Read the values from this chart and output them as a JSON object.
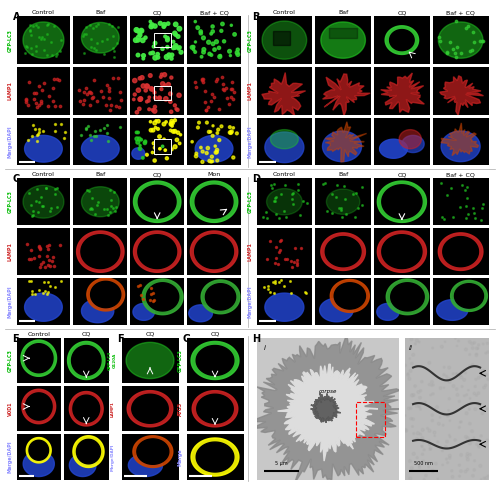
{
  "figure_bg": "#f0f0f0",
  "panel_bg": "#000000",
  "border_color": "#cccccc",
  "text_color": "#000000",
  "label_color_green": "#00ff00",
  "label_color_red": "#ff4444",
  "label_color_blue": "#4444ff",
  "panel_labels": [
    "A",
    "B",
    "C",
    "D",
    "E",
    "F",
    "G",
    "H"
  ],
  "panel_A_cols": [
    "Control",
    "Baf",
    "CQ",
    "Baf + CQ"
  ],
  "panel_A_rows": [
    "GFP-LC3",
    "LAMP1",
    "Merge/DAPI"
  ],
  "panel_B_cols": [
    "Control",
    "Baf",
    "CQ",
    "Baf + CQ"
  ],
  "panel_B_rows": [
    "GFP-LC3",
    "LAMP1",
    "Merge/DAPI"
  ],
  "panel_C_cols": [
    "Control",
    "Baf",
    "CQ",
    "Mon"
  ],
  "panel_C_rows": [
    "GFP-LC3",
    "LAMP1",
    "Merge/DAPI"
  ],
  "panel_D_cols": [
    "Control",
    "Baf",
    "CQ",
    "Baf + CQ"
  ],
  "panel_D_rows": [
    "GFP-LC3",
    "LAMP1",
    "Merge/DAPI"
  ],
  "panel_E_cols": [
    "Control",
    "CQ"
  ],
  "panel_E_rows": [
    "GFP-LC3",
    "V0D1",
    "Merge/DAPI"
  ],
  "panel_F_cols": [
    "CQ"
  ],
  "panel_F_rows": [
    "GFP-LC3 G120A",
    "LAMP1",
    "Merge/DAPI"
  ],
  "panel_G_cols": [
    "CQ"
  ],
  "panel_G_rows": [
    "GFP-LC3",
    "ATG5",
    "Merge"
  ],
  "panel_H_scale1": "5 μm",
  "panel_H_scale2": "500 nm",
  "panel_H_label_i": "i",
  "panel_H_label_ii": "ii",
  "panel_H_text": "corpse",
  "figsize": [
    5.0,
    4.91
  ],
  "dpi": 100
}
